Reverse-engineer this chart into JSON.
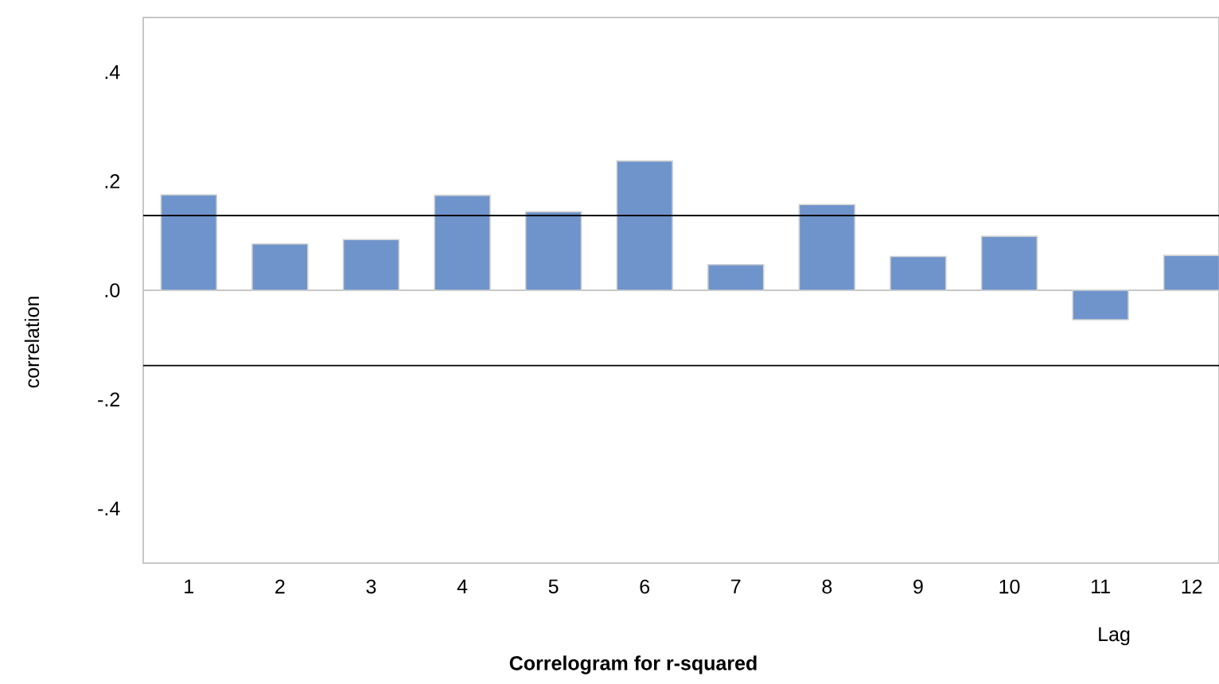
{
  "chart_data": {
    "type": "bar",
    "title": "Correlogram for r-squared",
    "xlabel": "Lag",
    "ylabel": "correlation",
    "categories": [
      "1",
      "2",
      "3",
      "4",
      "5",
      "6",
      "7",
      "8",
      "9",
      "10",
      "11",
      "12"
    ],
    "values": [
      0.175,
      0.085,
      0.093,
      0.174,
      0.144,
      0.237,
      0.047,
      0.157,
      0.062,
      0.099,
      -0.054,
      0.064
    ],
    "color": "#6f94cc",
    "ylim": [
      -0.5,
      0.5
    ],
    "yticks": [
      {
        "value": -0.4,
        "label": "-.4"
      },
      {
        "value": -0.2,
        "label": "-.2"
      },
      {
        "value": 0,
        "label": ".0"
      },
      {
        "value": 0.2,
        "label": ".2"
      },
      {
        "value": 0.4,
        "label": ".4"
      }
    ],
    "ref_lines": [
      {
        "axis": "y",
        "value": 0.137,
        "color": "#000000"
      },
      {
        "axis": "y",
        "value": -0.138,
        "color": "#000000"
      }
    ]
  }
}
